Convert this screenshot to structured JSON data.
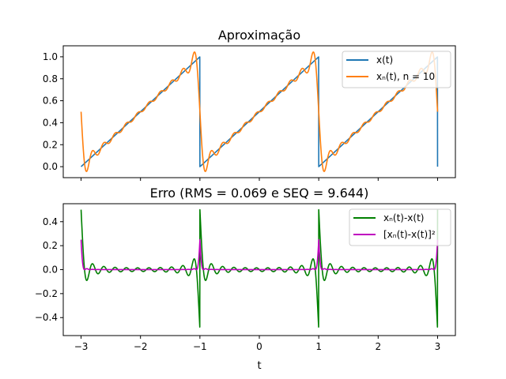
{
  "chart_data": [
    {
      "type": "line",
      "title": "Aproximação",
      "xlim": [
        -3.3,
        3.3
      ],
      "ylim": [
        -0.1,
        1.1
      ],
      "xticks": [
        -3,
        -2,
        -1,
        0,
        1,
        2,
        3
      ],
      "xtick_labels_visible": false,
      "yticks": [
        0.0,
        0.2,
        0.4,
        0.6,
        0.8,
        1.0
      ],
      "ytick_labels": [
        "0.0",
        "0.2",
        "0.4",
        "0.6",
        "0.8",
        "1.0"
      ],
      "grid": false,
      "legend_position": "top-right",
      "series": [
        {
          "name": "x(t)",
          "color": "#1f77b4",
          "function": "sawtooth",
          "period": 2,
          "x_range": [
            -3,
            3
          ]
        },
        {
          "name": "xₙ(t), n = 10",
          "color": "#ff7f0e",
          "function": "fourier-sawtooth",
          "n": 10,
          "period": 2,
          "x_range": [
            -3,
            3
          ]
        }
      ]
    },
    {
      "type": "line",
      "title": "Erro (RMS = 0.069 e SEQ = 9.644)",
      "xlim": [
        -3.3,
        3.3
      ],
      "ylim": [
        -0.55,
        0.55
      ],
      "xticks": [
        -3,
        -2,
        -1,
        0,
        1,
        2,
        3
      ],
      "xtick_labels": [
        "−3",
        "−2",
        "−1",
        "0",
        "1",
        "2",
        "3"
      ],
      "yticks": [
        -0.4,
        -0.2,
        0.0,
        0.2,
        0.4
      ],
      "ytick_labels": [
        "−0.4",
        "−0.2",
        "0.0",
        "0.2",
        "0.4"
      ],
      "xlabel": "t",
      "grid": false,
      "legend_position": "top-right",
      "series": [
        {
          "name": "xₙ(t)-x(t)",
          "color": "#008000",
          "function": "error",
          "n": 10,
          "period": 2,
          "x_range": [
            -3,
            3
          ]
        },
        {
          "name": "[xₙ(t)-x(t)]²",
          "color": "#bf00bf",
          "function": "squared-error",
          "n": 10,
          "period": 2,
          "x_range": [
            -3,
            3
          ]
        }
      ]
    }
  ]
}
